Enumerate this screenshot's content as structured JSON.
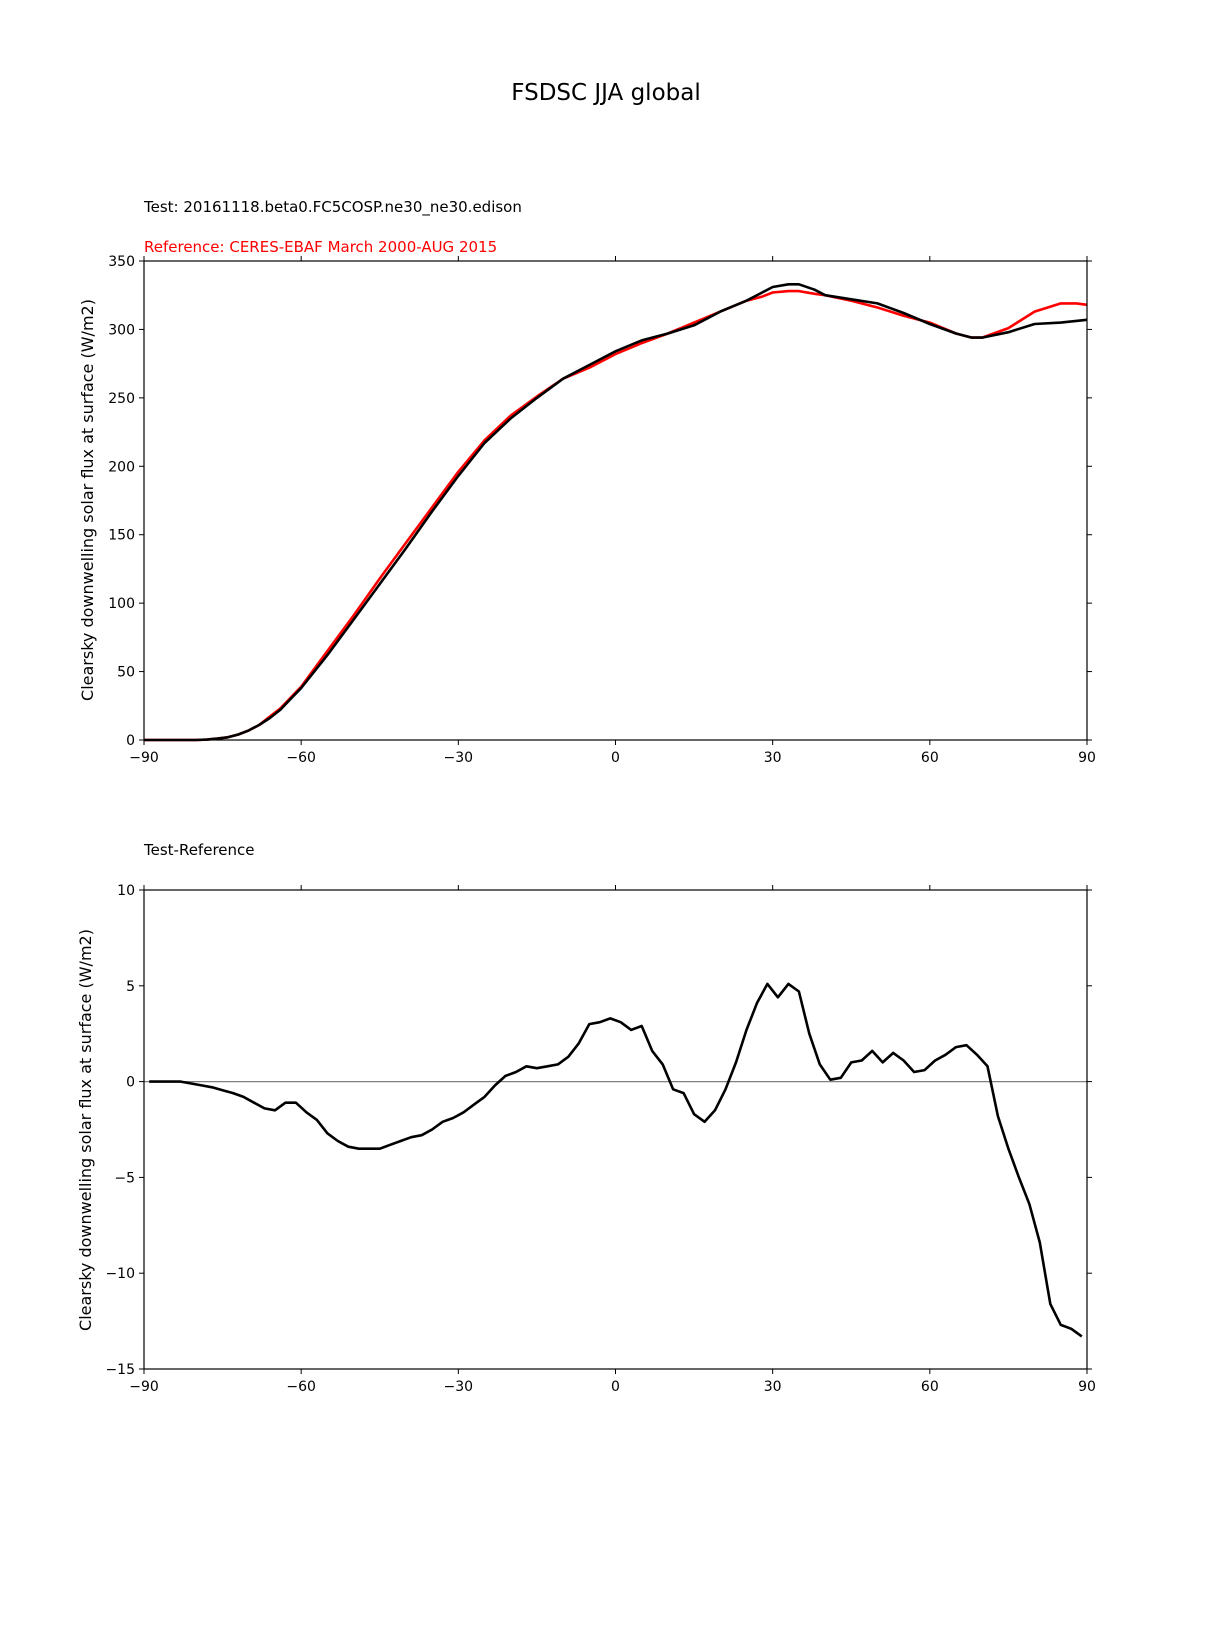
{
  "figure": {
    "title": "FSDSC JJA global"
  },
  "colors": {
    "test": "#000000",
    "reference": "#ff0000",
    "zero_line": "#808080"
  },
  "chart_data": [
    {
      "type": "line",
      "test_label": "Test: 20161118.beta0.FC5COSP.ne30_ne30.edison",
      "reference_label": "Reference: CERES-EBAF March 2000-AUG 2015",
      "xlabel": "",
      "ylabel": "Clearsky downwelling solar flux at surface (W/m2)",
      "xlim": [
        -90,
        90
      ],
      "ylim": [
        0,
        350
      ],
      "xticks": [
        -90,
        -60,
        -30,
        0,
        30,
        60,
        90
      ],
      "xtick_labels": [
        "−90",
        "−60",
        "−30",
        "0",
        "30",
        "60",
        "90"
      ],
      "yticks": [
        0,
        50,
        100,
        150,
        200,
        250,
        300,
        350
      ],
      "ytick_labels": [
        "0",
        "50",
        "100",
        "150",
        "200",
        "250",
        "300",
        "350"
      ],
      "series": [
        {
          "role": "test",
          "x": [
            -90,
            -85,
            -80,
            -78,
            -76,
            -74,
            -72,
            -70,
            -68,
            -66,
            -64,
            -62,
            -60,
            -55,
            -50,
            -45,
            -40,
            -35,
            -30,
            -25,
            -20,
            -15,
            -10,
            -5,
            0,
            5,
            10,
            15,
            20,
            25,
            28,
            30,
            33,
            35,
            38,
            40,
            45,
            50,
            55,
            60,
            65,
            68,
            70,
            75,
            80,
            85,
            90
          ],
          "y": [
            0,
            0,
            0,
            0.3,
            1,
            2,
            4,
            7,
            11,
            16,
            22,
            30,
            38,
            62,
            88,
            114,
            140,
            167,
            193,
            217,
            235,
            250,
            264,
            274,
            284,
            292,
            297,
            303,
            313,
            321,
            327,
            331,
            333,
            333,
            329,
            325,
            322,
            319,
            312,
            304,
            297,
            294,
            294,
            298,
            304,
            305,
            307
          ]
        },
        {
          "role": "reference",
          "x": [
            -90,
            -85,
            -80,
            -78,
            -76,
            -74,
            -72,
            -70,
            -68,
            -66,
            -64,
            -62,
            -60,
            -55,
            -50,
            -45,
            -40,
            -35,
            -30,
            -25,
            -20,
            -15,
            -10,
            -5,
            0,
            5,
            10,
            15,
            20,
            25,
            28,
            30,
            33,
            35,
            38,
            40,
            45,
            50,
            55,
            60,
            65,
            68,
            70,
            75,
            80,
            85,
            88,
            90
          ],
          "y": [
            0,
            0,
            0,
            0.3,
            1,
            2,
            4,
            7,
            11,
            17,
            23,
            31,
            39,
            65,
            91,
            118,
            144,
            170,
            196,
            219,
            237,
            251,
            264,
            272,
            282,
            290,
            297,
            305,
            313,
            321,
            324,
            327,
            328,
            328,
            326,
            325,
            321,
            316,
            310,
            305,
            297,
            294,
            294,
            301,
            313,
            319,
            319,
            318
          ]
        }
      ]
    },
    {
      "type": "line",
      "panel_label": "Test-Reference",
      "xlabel": "",
      "ylabel": "Clearsky downwelling solar flux at surface (W/m2)",
      "xlim": [
        -90,
        90
      ],
      "ylim": [
        -15,
        10
      ],
      "xticks": [
        -90,
        -60,
        -30,
        0,
        30,
        60,
        90
      ],
      "xtick_labels": [
        "−90",
        "−60",
        "−30",
        "0",
        "30",
        "60",
        "90"
      ],
      "yticks": [
        -15,
        -10,
        -5,
        0,
        5,
        10
      ],
      "ytick_labels": [
        "−15",
        "−10",
        "−5",
        "0",
        "5",
        "10"
      ],
      "zero_line": true,
      "series": [
        {
          "role": "difference",
          "x": [
            -89,
            -87,
            -85,
            -83,
            -81,
            -79,
            -77,
            -75,
            -73,
            -71,
            -69,
            -67,
            -65,
            -63,
            -61,
            -59,
            -57,
            -55,
            -53,
            -51,
            -49,
            -47,
            -45,
            -43,
            -41,
            -39,
            -37,
            -35,
            -33,
            -31,
            -29,
            -27,
            -25,
            -23,
            -21,
            -19,
            -17,
            -15,
            -13,
            -11,
            -9,
            -7,
            -5,
            -3,
            -1,
            1,
            3,
            5,
            7,
            9,
            11,
            13,
            15,
            17,
            19,
            21,
            23,
            25,
            27,
            29,
            31,
            33,
            35,
            37,
            39,
            41,
            43,
            45,
            47,
            49,
            51,
            53,
            55,
            57,
            59,
            61,
            63,
            65,
            67,
            69,
            71,
            73,
            75,
            77,
            79,
            81,
            83,
            85,
            87,
            89
          ],
          "y": [
            0,
            0,
            0,
            0,
            -0.1,
            -0.2,
            -0.3,
            -0.45,
            -0.6,
            -0.8,
            -1.1,
            -1.4,
            -1.5,
            -1.1,
            -1.1,
            -1.6,
            -2.0,
            -2.7,
            -3.1,
            -3.4,
            -3.5,
            -3.5,
            -3.5,
            -3.3,
            -3.1,
            -2.9,
            -2.8,
            -2.5,
            -2.1,
            -1.9,
            -1.6,
            -1.2,
            -0.8,
            -0.2,
            0.3,
            0.5,
            0.8,
            0.7,
            0.8,
            0.9,
            1.3,
            2.0,
            3.0,
            3.1,
            3.3,
            3.1,
            2.7,
            2.9,
            1.6,
            0.9,
            -0.4,
            -0.6,
            -1.7,
            -2.1,
            -1.5,
            -0.4,
            1.0,
            2.7,
            4.1,
            5.1,
            4.4,
            5.1,
            4.7,
            2.5,
            0.9,
            0.1,
            0.2,
            1.0,
            1.1,
            1.6,
            1.0,
            1.5,
            1.1,
            0.5,
            0.6,
            1.1,
            1.4,
            1.8,
            1.9,
            1.4,
            0.8,
            -1.8,
            -3.5,
            -5.0,
            -6.4,
            -8.4,
            -11.6,
            -12.7,
            -12.9,
            -13.3
          ]
        }
      ]
    }
  ]
}
